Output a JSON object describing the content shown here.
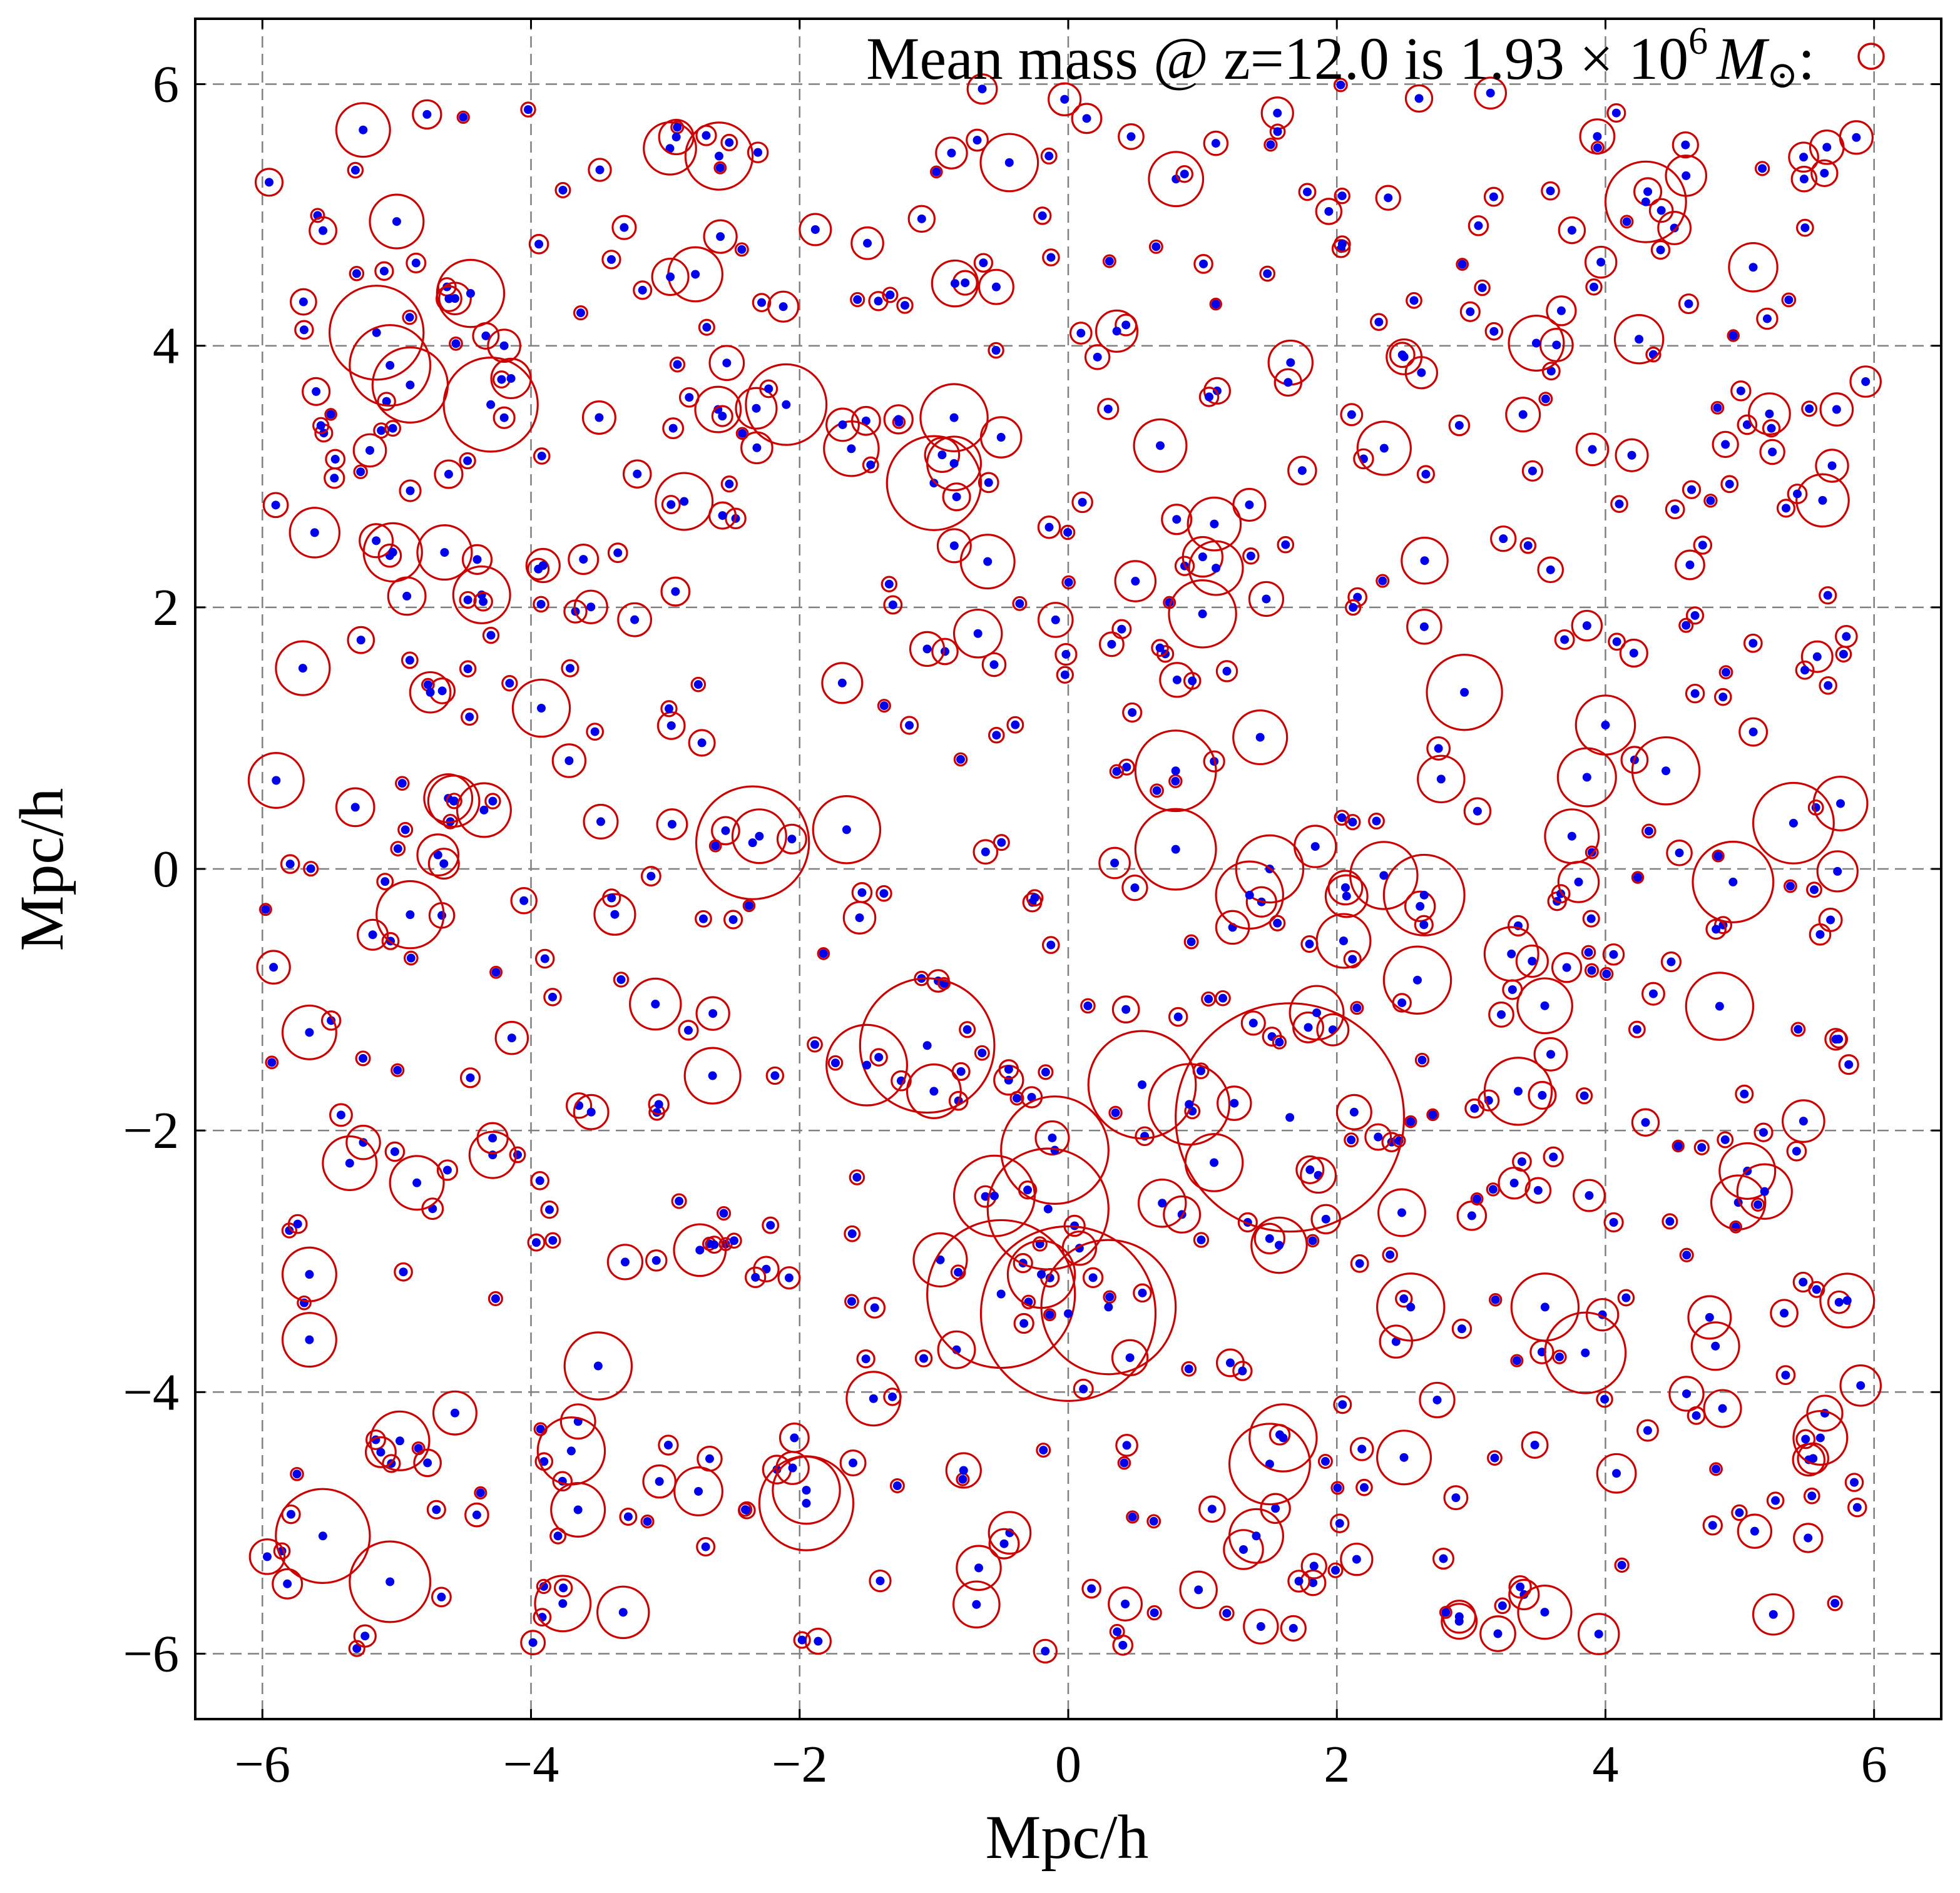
{
  "chart_data": {
    "type": "scatter",
    "title": "",
    "xlabel": "Mpc/h",
    "ylabel": "Mpc/h",
    "xlim": [
      -6.5,
      6.5
    ],
    "ylim": [
      -6.5,
      6.5
    ],
    "xticks": [
      -6,
      -4,
      -2,
      0,
      2,
      4,
      6
    ],
    "yticks": [
      -6,
      -4,
      -2,
      0,
      2,
      4,
      6
    ],
    "xtick_labels": [
      "−6",
      "−4",
      "−2",
      "0",
      "2",
      "4",
      "6"
    ],
    "ytick_labels": [
      "−6",
      "−4",
      "−2",
      "0",
      "2",
      "4",
      "6"
    ],
    "grid": true,
    "legend": {
      "placement": "top-right",
      "text_prefix": "Mean mass @ z=12.0 is 1.93 × 10",
      "text_exponent": "6",
      "text_symbol": "M",
      "text_subscript": "⊙",
      "text_suffix": ":",
      "marker": "open red circle"
    },
    "colors": {
      "circle": "#cc0000",
      "point": "#0000ee",
      "grid": "#808080"
    },
    "series": [
      {
        "name": "",
        "marker": "open red circle with blue centre point",
        "points": [
          {
            "x": -5.15,
            "y": 4.1,
            "r": 0.35
          },
          {
            "x": -5.05,
            "y": 3.85,
            "r": 0.3
          },
          {
            "x": -4.9,
            "y": 3.7,
            "r": 0.28
          },
          {
            "x": -4.45,
            "y": 4.4,
            "r": 0.25
          },
          {
            "x": -4.3,
            "y": 3.55,
            "r": 0.35
          },
          {
            "x": -5.25,
            "y": 5.65,
            "r": 0.2
          },
          {
            "x": -5.0,
            "y": 4.95,
            "r": 0.2
          },
          {
            "x": -4.2,
            "y": 4.0,
            "r": 0.12
          },
          {
            "x": -5.95,
            "y": 5.25,
            "r": 0.1
          },
          {
            "x": -5.6,
            "y": 3.65,
            "r": 0.1
          },
          {
            "x": -5.2,
            "y": 3.2,
            "r": 0.12
          },
          {
            "x": -2.6,
            "y": 5.45,
            "r": 0.25
          },
          {
            "x": -2.1,
            "y": 3.55,
            "r": 0.3
          },
          {
            "x": -1.0,
            "y": 2.95,
            "r": 0.35
          },
          {
            "x": -0.85,
            "y": 3.1,
            "r": 0.2
          },
          {
            "x": -0.5,
            "y": 3.3,
            "r": 0.15
          },
          {
            "x": -0.6,
            "y": 2.35,
            "r": 0.2
          },
          {
            "x": 0.5,
            "y": 2.2,
            "r": 0.15
          },
          {
            "x": 1.1,
            "y": 2.3,
            "r": 0.2
          },
          {
            "x": 2.95,
            "y": 1.35,
            "r": 0.28
          },
          {
            "x": 4.3,
            "y": 5.1,
            "r": 0.3
          },
          {
            "x": 4.6,
            "y": 5.3,
            "r": 0.15
          },
          {
            "x": 5.1,
            "y": 4.6,
            "r": 0.18
          },
          {
            "x": 4.25,
            "y": 4.05,
            "r": 0.18
          },
          {
            "x": 5.4,
            "y": 0.35,
            "r": 0.3
          },
          {
            "x": 4.0,
            "y": 1.1,
            "r": 0.22
          },
          {
            "x": 3.75,
            "y": 0.25,
            "r": 0.2
          },
          {
            "x": 4.95,
            "y": -0.1,
            "r": 0.3
          },
          {
            "x": 4.85,
            "y": -1.05,
            "r": 0.25
          },
          {
            "x": -2.35,
            "y": 0.2,
            "r": 0.42
          },
          {
            "x": -2.3,
            "y": 0.25,
            "r": 0.2
          },
          {
            "x": -1.65,
            "y": 0.3,
            "r": 0.25
          },
          {
            "x": -1.05,
            "y": -1.35,
            "r": 0.5
          },
          {
            "x": -1.5,
            "y": -1.5,
            "r": 0.3
          },
          {
            "x": -1.0,
            "y": -1.7,
            "r": 0.2
          },
          {
            "x": -0.85,
            "y": 3.45,
            "r": 0.25
          },
          {
            "x": 0.8,
            "y": 0.75,
            "r": 0.3
          },
          {
            "x": 0.8,
            "y": 0.15,
            "r": 0.3
          },
          {
            "x": 1.5,
            "y": 0.0,
            "r": 0.25
          },
          {
            "x": 1.65,
            "y": -1.9,
            "r": 0.85
          },
          {
            "x": 0.55,
            "y": -1.65,
            "r": 0.4
          },
          {
            "x": 0.9,
            "y": -1.8,
            "r": 0.3
          },
          {
            "x": -0.1,
            "y": -2.15,
            "r": 0.4
          },
          {
            "x": -0.55,
            "y": -2.5,
            "r": 0.3
          },
          {
            "x": -0.15,
            "y": -2.6,
            "r": 0.45
          },
          {
            "x": -0.5,
            "y": -3.25,
            "r": 0.55
          },
          {
            "x": 0.0,
            "y": -3.4,
            "r": 0.65
          },
          {
            "x": 0.3,
            "y": -3.35,
            "r": 0.5
          },
          {
            "x": -0.2,
            "y": -3.1,
            "r": 0.25
          },
          {
            "x": 2.65,
            "y": -0.2,
            "r": 0.3
          },
          {
            "x": 2.35,
            "y": -0.05,
            "r": 0.25
          },
          {
            "x": 2.05,
            "y": -0.55,
            "r": 0.2
          },
          {
            "x": 2.6,
            "y": -0.85,
            "r": 0.25
          },
          {
            "x": 1.85,
            "y": -1.1,
            "r": 0.2
          },
          {
            "x": 3.3,
            "y": -0.65,
            "r": 0.2
          },
          {
            "x": 3.35,
            "y": -1.7,
            "r": 0.25
          },
          {
            "x": 1.8,
            "y": -2.3,
            "r": 0.1
          },
          {
            "x": -5.65,
            "y": -1.25,
            "r": 0.2
          },
          {
            "x": -5.35,
            "y": -2.25,
            "r": 0.2
          },
          {
            "x": -4.85,
            "y": -2.4,
            "r": 0.2
          },
          {
            "x": -5.65,
            "y": -3.1,
            "r": 0.2
          },
          {
            "x": -5.65,
            "y": -3.6,
            "r": 0.2
          },
          {
            "x": -5.55,
            "y": -5.1,
            "r": 0.35
          },
          {
            "x": -5.05,
            "y": -5.45,
            "r": 0.3
          },
          {
            "x": -4.75,
            "y": 1.35,
            "r": 0.15
          },
          {
            "x": -4.35,
            "y": 0.45,
            "r": 0.2
          },
          {
            "x": -4.9,
            "y": -0.35,
            "r": 0.25
          },
          {
            "x": -3.7,
            "y": -4.45,
            "r": 0.25
          },
          {
            "x": -3.65,
            "y": -4.9,
            "r": 0.2
          },
          {
            "x": -3.5,
            "y": -3.8,
            "r": 0.25
          },
          {
            "x": -1.95,
            "y": -4.85,
            "r": 0.35
          },
          {
            "x": -1.95,
            "y": -4.75,
            "r": 0.25
          },
          {
            "x": -1.45,
            "y": -4.05,
            "r": 0.2
          },
          {
            "x": 1.5,
            "y": -4.55,
            "r": 0.3
          },
          {
            "x": 1.6,
            "y": -4.35,
            "r": 0.25
          },
          {
            "x": 1.4,
            "y": -5.1,
            "r": 0.2
          },
          {
            "x": 2.55,
            "y": -3.35,
            "r": 0.25
          },
          {
            "x": 3.55,
            "y": -3.35,
            "r": 0.25
          },
          {
            "x": 3.85,
            "y": -3.7,
            "r": 0.3
          },
          {
            "x": 2.5,
            "y": -4.5,
            "r": 0.2
          },
          {
            "x": 5.8,
            "y": -3.3,
            "r": 0.2
          },
          {
            "x": 5.9,
            "y": -3.95,
            "r": 0.15
          },
          {
            "x": 5.6,
            "y": -4.35,
            "r": 0.2
          },
          {
            "x": 5.25,
            "y": -5.7,
            "r": 0.15
          },
          {
            "x": 3.95,
            "y": -5.85,
            "r": 0.15
          },
          {
            "x": 1.0,
            "y": 1.95,
            "r": 0.25
          },
          {
            "x": 1.35,
            "y": -0.2,
            "r": 0.25
          },
          {
            "x": 3.8,
            "y": -0.1,
            "r": 0.15
          },
          {
            "x": 4.45,
            "y": 0.75,
            "r": 0.25
          },
          {
            "x": 5.75,
            "y": 0.5,
            "r": 0.2
          }
        ]
      }
    ],
    "point_cloud": {
      "count": 700,
      "x_range": [
        -6.0,
        6.0
      ],
      "y_range": [
        -6.0,
        6.0
      ],
      "description": "additional halo markers, small circles with blue centres"
    }
  }
}
